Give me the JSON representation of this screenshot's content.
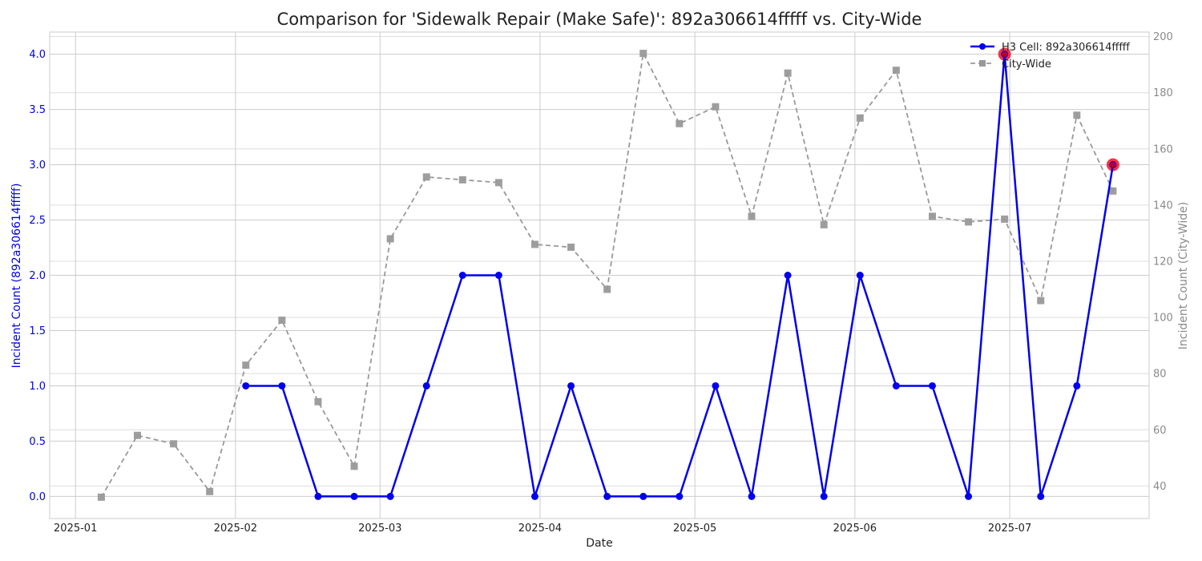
{
  "chart_data": {
    "type": "line",
    "title": "Comparison for 'Sidewalk Repair (Make Safe)': 892a306614fffff vs. City-Wide",
    "xlabel": "Date",
    "ylabel_left": "Incident Count (892a306614fffff)",
    "ylabel_right": "Incident Count (City-Wide)",
    "x_ticks": [
      "2025-01",
      "2025-02",
      "2025-03",
      "2025-04",
      "2025-05",
      "2025-06",
      "2025-07"
    ],
    "x_range": [
      "2024-12-27",
      "2025-07-28"
    ],
    "ylim_left": [
      -0.2,
      4.2
    ],
    "ylim_right": [
      28.4,
      201.6
    ],
    "y_ticks_left": [
      "0.0",
      "0.5",
      "1.0",
      "1.5",
      "2.0",
      "2.5",
      "3.0",
      "3.5",
      "4.0"
    ],
    "y_ticks_right": [
      "40",
      "60",
      "80",
      "100",
      "120",
      "140",
      "160",
      "180",
      "200"
    ],
    "grid": true,
    "legend_position": "top-right",
    "colors": {
      "cell": "#0000ee",
      "city": "#999999",
      "highlight": "#ff1a2e",
      "left_axis_text": "#0000ee",
      "right_axis_text": "#8a8a8a"
    },
    "series": [
      {
        "name": "H3 Cell: 892a306614fffff",
        "axis": "left",
        "style": "solid-circle",
        "x": [
          "2025-02-03",
          "2025-02-10",
          "2025-02-17",
          "2025-02-24",
          "2025-03-03",
          "2025-03-10",
          "2025-03-17",
          "2025-03-24",
          "2025-03-31",
          "2025-04-07",
          "2025-04-14",
          "2025-04-21",
          "2025-04-28",
          "2025-05-05",
          "2025-05-12",
          "2025-05-19",
          "2025-05-26",
          "2025-06-02",
          "2025-06-09",
          "2025-06-16",
          "2025-06-23",
          "2025-06-30",
          "2025-07-07",
          "2025-07-14",
          "2025-07-21"
        ],
        "values": [
          1,
          1,
          0,
          0,
          0,
          1,
          2,
          2,
          0,
          1,
          0,
          0,
          0,
          1,
          0,
          2,
          0,
          2,
          1,
          1,
          0,
          4,
          0,
          1,
          3
        ]
      },
      {
        "name": "City-Wide",
        "axis": "right",
        "style": "dashed-square",
        "x": [
          "2025-01-06",
          "2025-01-13",
          "2025-01-20",
          "2025-01-27",
          "2025-02-03",
          "2025-02-10",
          "2025-02-17",
          "2025-02-24",
          "2025-03-03",
          "2025-03-10",
          "2025-03-17",
          "2025-03-24",
          "2025-03-31",
          "2025-04-07",
          "2025-04-14",
          "2025-04-21",
          "2025-04-28",
          "2025-05-05",
          "2025-05-12",
          "2025-05-19",
          "2025-05-26",
          "2025-06-02",
          "2025-06-09",
          "2025-06-16",
          "2025-06-23",
          "2025-06-30",
          "2025-07-07",
          "2025-07-14",
          "2025-07-21"
        ],
        "values": [
          36,
          58,
          55,
          38,
          83,
          99,
          70,
          47,
          128,
          150,
          149,
          148,
          126,
          125,
          110,
          194,
          169,
          175,
          136,
          187,
          133,
          171,
          188,
          136,
          134,
          135,
          106,
          172,
          145
        ]
      }
    ],
    "highlights": [
      {
        "x": "2025-06-30",
        "value": 4
      },
      {
        "x": "2025-07-21",
        "value": 3
      }
    ]
  }
}
